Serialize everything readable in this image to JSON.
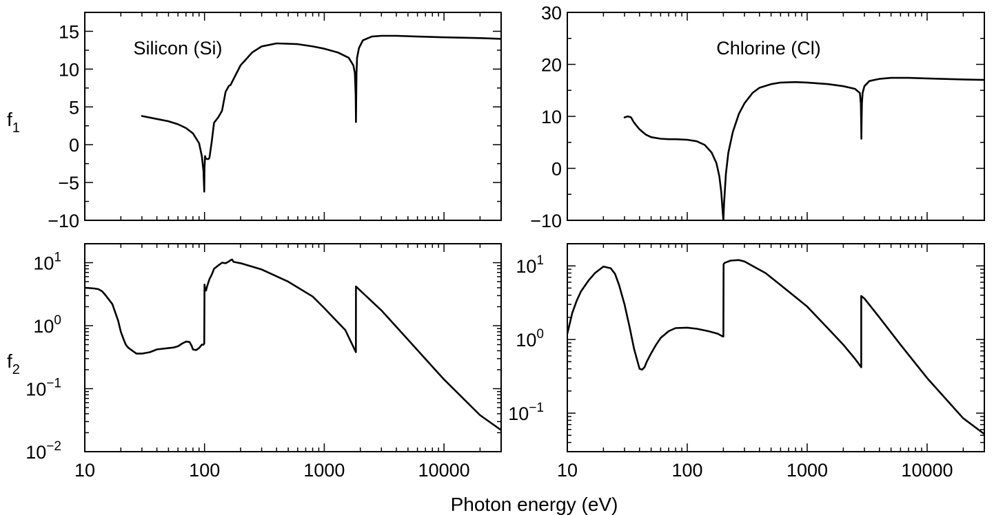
{
  "figure": {
    "xlabel": "Photon energy (eV)",
    "row_labels": [
      {
        "main": "f",
        "sub": "1"
      },
      {
        "main": "f",
        "sub": "2"
      }
    ]
  },
  "chart_data": [
    {
      "type": "line",
      "panel": "top-left",
      "title": "Silicon (Si)",
      "ylabel": "f1",
      "xscale": "log",
      "yscale": "linear",
      "xlim": [
        10,
        30000
      ],
      "ylim": [
        -10,
        17.5
      ],
      "xticks": [
        {
          "v": 10,
          "label": "10"
        },
        {
          "v": 100,
          "label": "100"
        },
        {
          "v": 1000,
          "label": "1000"
        },
        {
          "v": 10000,
          "label": "10000"
        }
      ],
      "yticks": [
        {
          "v": -10,
          "label": "−10"
        },
        {
          "v": -5,
          "label": "−5"
        },
        {
          "v": 0,
          "label": "0"
        },
        {
          "v": 5,
          "label": "5"
        },
        {
          "v": 10,
          "label": "10"
        },
        {
          "v": 15,
          "label": "15"
        }
      ],
      "x_tick_labels_shown": false,
      "series": [
        {
          "x": [
            30,
            40,
            50,
            60,
            70,
            80,
            90,
            95,
            98,
            99.5,
            100,
            101,
            102,
            105,
            108,
            110,
            115,
            120,
            130,
            140,
            150,
            160,
            165,
            170,
            200,
            250,
            300,
            400,
            600,
            800,
            1000,
            1300,
            1600,
            1750,
            1800,
            1830,
            1840,
            1850,
            1860,
            1880,
            1950,
            2100,
            2500,
            3000,
            4000,
            6000,
            10000,
            20000,
            30000
          ],
          "y": [
            3.8,
            3.4,
            3.1,
            2.7,
            2.2,
            1.5,
            0.2,
            -1.5,
            -3.5,
            -6.2,
            -3.0,
            -1.5,
            -1.8,
            -1.9,
            -1.9,
            -1.7,
            0.5,
            2.9,
            3.6,
            4.5,
            7.0,
            7.8,
            7.9,
            8.3,
            10.5,
            12.2,
            13.0,
            13.4,
            13.3,
            13.0,
            12.7,
            12.2,
            11.5,
            10.5,
            9.5,
            6.5,
            3.0,
            6.5,
            9.5,
            11.5,
            12.8,
            13.8,
            14.3,
            14.4,
            14.4,
            14.3,
            14.2,
            14.1,
            14.0
          ]
        }
      ]
    },
    {
      "type": "line",
      "panel": "top-right",
      "title": "Chlorine (Cl)",
      "ylabel": "f1",
      "xscale": "log",
      "yscale": "linear",
      "xlim": [
        10,
        30000
      ],
      "ylim": [
        -10,
        30
      ],
      "xticks": [
        {
          "v": 10,
          "label": "10"
        },
        {
          "v": 100,
          "label": "100"
        },
        {
          "v": 1000,
          "label": "1000"
        },
        {
          "v": 10000,
          "label": "10000"
        }
      ],
      "yticks": [
        {
          "v": -10,
          "label": "−10"
        },
        {
          "v": 0,
          "label": "0"
        },
        {
          "v": 10,
          "label": "10"
        },
        {
          "v": 20,
          "label": "20"
        },
        {
          "v": 30,
          "label": "30"
        }
      ],
      "x_tick_labels_shown": false,
      "series": [
        {
          "x": [
            30,
            32,
            34,
            36,
            40,
            45,
            50,
            60,
            70,
            80,
            100,
            120,
            140,
            160,
            175,
            185,
            192,
            197,
            200,
            203,
            210,
            220,
            240,
            270,
            300,
            350,
            400,
            500,
            600,
            800,
            1000,
            1500,
            2000,
            2500,
            2750,
            2800,
            2820,
            2830,
            2840,
            2860,
            2900,
            3000,
            3300,
            4000,
            5000,
            7000,
            10000,
            20000,
            30000
          ],
          "y": [
            9.8,
            10.0,
            9.8,
            8.8,
            7.5,
            6.5,
            6.0,
            5.7,
            5.6,
            5.6,
            5.5,
            5.2,
            4.5,
            3.0,
            1.0,
            -1.5,
            -4.5,
            -8.0,
            -10.0,
            -6.5,
            -1.0,
            3.0,
            7.0,
            10.5,
            12.5,
            14.5,
            15.5,
            16.2,
            16.5,
            16.6,
            16.5,
            16.2,
            15.8,
            15.3,
            14.5,
            12.5,
            9.0,
            5.7,
            9.0,
            12.5,
            14.5,
            15.8,
            16.8,
            17.2,
            17.4,
            17.4,
            17.3,
            17.1,
            17.0
          ]
        }
      ]
    },
    {
      "type": "line",
      "panel": "bottom-left",
      "title": "",
      "ylabel": "f2",
      "xscale": "log",
      "yscale": "log",
      "xlim": [
        10,
        30000
      ],
      "ylim": [
        0.01,
        20
      ],
      "xticks": [
        {
          "v": 10,
          "label": "10"
        },
        {
          "v": 100,
          "label": "100"
        },
        {
          "v": 1000,
          "label": "1000"
        },
        {
          "v": 10000,
          "label": "10000"
        }
      ],
      "yticks": [
        {
          "v": 0.01,
          "base": "10",
          "exp": "−2"
        },
        {
          "v": 0.1,
          "base": "10",
          "exp": "−1"
        },
        {
          "v": 1,
          "base": "10",
          "exp": "0"
        },
        {
          "v": 10,
          "base": "10",
          "exp": "1"
        }
      ],
      "x_tick_labels_shown": true,
      "series": [
        {
          "x": [
            10,
            12,
            13,
            14,
            15,
            17,
            19,
            20,
            21,
            22,
            23,
            25,
            27,
            30,
            35,
            40,
            50,
            55,
            60,
            65,
            70,
            75,
            78,
            80,
            85,
            90,
            95,
            98,
            99.5,
            100,
            101,
            103,
            105,
            110,
            115,
            120,
            130,
            140,
            150,
            160,
            165,
            170,
            175,
            200,
            300,
            500,
            800,
            1000,
            1500,
            1838,
            1839,
            2000,
            3000,
            5000,
            10000,
            20000,
            30000
          ],
          "y": [
            4.0,
            3.9,
            3.8,
            3.5,
            3.0,
            2.2,
            1.2,
            0.8,
            0.62,
            0.5,
            0.45,
            0.4,
            0.36,
            0.36,
            0.38,
            0.42,
            0.44,
            0.45,
            0.47,
            0.52,
            0.56,
            0.55,
            0.48,
            0.42,
            0.41,
            0.44,
            0.5,
            0.5,
            0.52,
            4.5,
            3.8,
            3.6,
            4.2,
            5.5,
            6.5,
            8.0,
            9.0,
            10.0,
            9.8,
            10.5,
            11.0,
            11.2,
            10.3,
            9.8,
            7.8,
            5.0,
            2.9,
            1.9,
            0.85,
            0.38,
            4.2,
            3.6,
            1.75,
            0.6,
            0.14,
            0.038,
            0.022
          ]
        }
      ]
    },
    {
      "type": "line",
      "panel": "bottom-right",
      "title": "",
      "ylabel": "f2",
      "xscale": "log",
      "yscale": "log",
      "xlim": [
        10,
        30000
      ],
      "ylim": [
        0.03,
        20
      ],
      "xticks": [
        {
          "v": 10,
          "label": "10"
        },
        {
          "v": 100,
          "label": "100"
        },
        {
          "v": 1000,
          "label": "1000"
        },
        {
          "v": 10000,
          "label": "10000"
        }
      ],
      "yticks": [
        {
          "v": 0.1,
          "base": "10",
          "exp": "−1"
        },
        {
          "v": 1,
          "base": "10",
          "exp": "0"
        },
        {
          "v": 10,
          "base": "10",
          "exp": "1"
        }
      ],
      "x_tick_labels_shown": true,
      "series": [
        {
          "x": [
            10,
            11,
            12,
            13,
            15,
            17,
            20,
            23,
            25,
            27,
            30,
            33,
            36,
            40,
            42,
            44,
            46,
            50,
            55,
            60,
            70,
            80,
            100,
            120,
            150,
            180,
            198,
            200,
            201,
            205,
            230,
            270,
            300,
            350,
            450,
            600,
            1000,
            1500,
            2000,
            2500,
            2822,
            2823,
            3000,
            4000,
            6000,
            10000,
            20000,
            30000
          ],
          "y": [
            1.2,
            2.3,
            3.4,
            4.5,
            6.3,
            8.0,
            9.8,
            9.3,
            7.8,
            5.5,
            3.0,
            1.5,
            0.75,
            0.4,
            0.39,
            0.42,
            0.5,
            0.65,
            0.85,
            1.05,
            1.3,
            1.43,
            1.45,
            1.4,
            1.3,
            1.2,
            1.1,
            1.1,
            10.5,
            11.0,
            11.8,
            12.0,
            11.5,
            10.0,
            8.0,
            5.5,
            2.8,
            1.4,
            0.85,
            0.55,
            0.42,
            3.9,
            3.6,
            2.0,
            0.85,
            0.3,
            0.085,
            0.052
          ]
        }
      ]
    }
  ]
}
